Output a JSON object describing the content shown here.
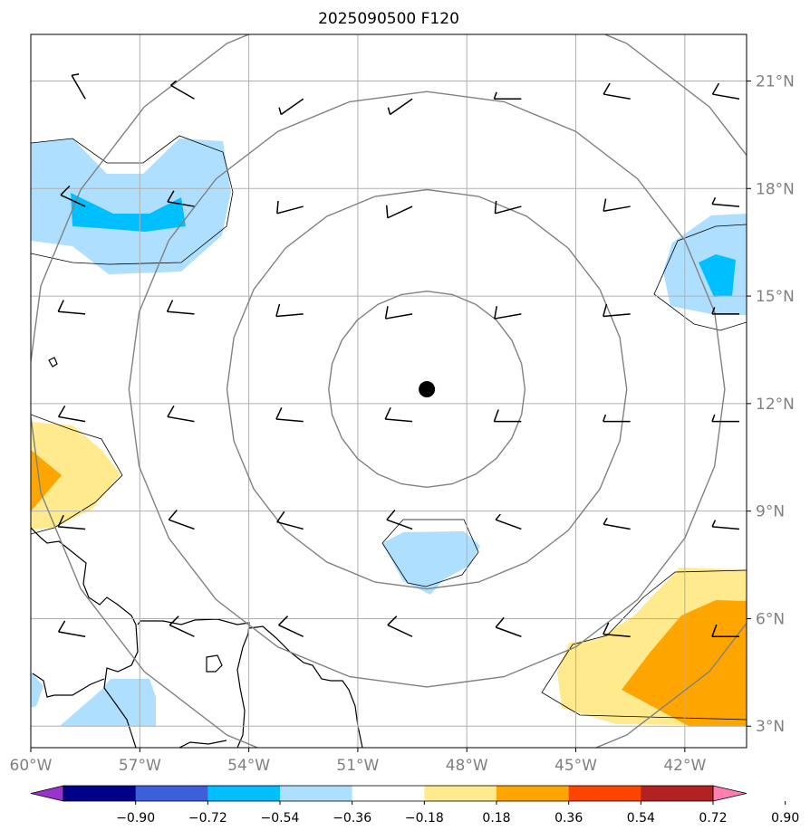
{
  "title": "2025090500 F120",
  "map": {
    "lon_range": [
      -60,
      -40.3
    ],
    "lat_range": [
      2.4,
      22.3
    ],
    "lon_ticks": [
      "60°W",
      "57°W",
      "54°W",
      "51°W",
      "48°W",
      "45°W",
      "42°W"
    ],
    "lon_tick_values": [
      -60,
      -57,
      -54,
      -51,
      -48,
      -45,
      -42
    ],
    "lat_ticks": [
      "21°N",
      "18°N",
      "15°N",
      "12°N",
      "9°N",
      "6°N",
      "3°N"
    ],
    "lat_tick_values": [
      21,
      18,
      15,
      12,
      9,
      6,
      3
    ],
    "gridlines": true,
    "storm_center": {
      "lon": -49.1,
      "lat": 12.4
    },
    "range_ring_radii_deg": [
      2.7,
      5.5,
      8.2,
      11.0
    ],
    "wind_barbs": {
      "lons": [
        -58.5,
        -55.5,
        -52.5,
        -49.5,
        -46.5,
        -43.5,
        -40.5
      ],
      "lats": [
        20.5,
        17.5,
        14.5,
        11.5,
        8.5,
        5.5
      ],
      "barbs": [
        [
          {
            "dir": 330,
            "spd": 5
          },
          {
            "dir": 300,
            "spd": 5
          },
          {
            "dir": 235,
            "spd": 5
          },
          {
            "dir": 235,
            "spd": 5
          },
          {
            "dir": 270,
            "spd": 5
          },
          {
            "dir": 280,
            "spd": 10
          },
          {
            "dir": 280,
            "spd": 10
          }
        ],
        [
          {
            "dir": 295,
            "spd": 10
          },
          {
            "dir": 280,
            "spd": 10
          },
          {
            "dir": 255,
            "spd": 10
          },
          {
            "dir": 245,
            "spd": 10
          },
          {
            "dir": 255,
            "spd": 10
          },
          {
            "dir": 260,
            "spd": 10
          },
          {
            "dir": 275,
            "spd": 5
          }
        ],
        [
          {
            "dir": 275,
            "spd": 10
          },
          {
            "dir": 275,
            "spd": 10
          },
          {
            "dir": 265,
            "spd": 10
          },
          {
            "dir": 260,
            "spd": 10
          },
          {
            "dir": 260,
            "spd": 10
          },
          {
            "dir": 265,
            "spd": 10
          },
          {
            "dir": 270,
            "spd": 5
          }
        ],
        [
          {
            "dir": 280,
            "spd": 10
          },
          {
            "dir": 280,
            "spd": 10
          },
          {
            "dir": 275,
            "spd": 10
          },
          {
            "dir": 275,
            "spd": 10
          },
          {
            "dir": 270,
            "spd": 10
          },
          {
            "dir": 270,
            "spd": 5
          },
          {
            "dir": 270,
            "spd": 5
          }
        ],
        [
          {
            "dir": 275,
            "spd": 10
          },
          {
            "dir": 290,
            "spd": 10
          },
          {
            "dir": 285,
            "spd": 10
          },
          {
            "dir": 290,
            "spd": 10
          },
          {
            "dir": 290,
            "spd": 5
          },
          {
            "dir": 280,
            "spd": 5
          },
          {
            "dir": 275,
            "spd": 5
          }
        ],
        [
          {
            "dir": 280,
            "spd": 10
          },
          {
            "dir": 295,
            "spd": 10
          },
          {
            "dir": 295,
            "spd": 10
          },
          {
            "dir": 295,
            "spd": 10
          },
          {
            "dir": 290,
            "spd": 10
          },
          {
            "dir": 275,
            "spd": 10
          },
          {
            "dir": 270,
            "spd": 10
          }
        ]
      ]
    }
  },
  "colorbar": {
    "labels": [
      "−0.90",
      "−0.72",
      "−0.54",
      "−0.36",
      "−0.18",
      "0.18",
      "0.36",
      "0.54",
      "0.72",
      "0.90"
    ],
    "colors": [
      "#9933cc",
      "#000088",
      "#3d5fd9",
      "#00bfff",
      "#afdfff",
      "#ffffff",
      "#ffea8e",
      "#ffa500",
      "#ff4400",
      "#b22222",
      "#ff80b0"
    ]
  },
  "colors": {
    "light_blue": "#afdfff",
    "blue": "#00bfff",
    "yellow": "#ffea8e",
    "orange": "#ffa500",
    "grid": "#b0b0b0",
    "rings": "#808080",
    "tick_label": "#808080"
  }
}
